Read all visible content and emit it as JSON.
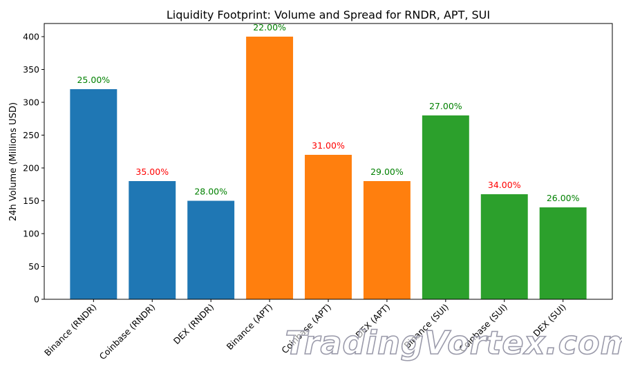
{
  "chart_data": {
    "type": "bar",
    "title": "Liquidity Footprint: Volume and Spread for RNDR, APT, SUI",
    "xlabel": "",
    "ylabel": "24h Volume (Millions USD)",
    "ylim": [
      0,
      420
    ],
    "yticks": [
      0,
      50,
      100,
      150,
      200,
      250,
      300,
      350,
      400
    ],
    "grid": false,
    "categories": [
      "Binance (RNDR)",
      "Coinbase (RNDR)",
      "DEX (RNDR)",
      "Binance (APT)",
      "Coinbase (APT)",
      "DEX (APT)",
      "Binance (SUI)",
      "Coinbase (SUI)",
      "DEX (SUI)"
    ],
    "values": [
      320,
      180,
      150,
      400,
      220,
      180,
      280,
      160,
      140
    ],
    "bar_colors": [
      "#1f77b4",
      "#1f77b4",
      "#1f77b4",
      "#ff7f0e",
      "#ff7f0e",
      "#ff7f0e",
      "#2ca02c",
      "#2ca02c",
      "#2ca02c"
    ],
    "data_labels": [
      "25.00%",
      "35.00%",
      "28.00%",
      "22.00%",
      "31.00%",
      "29.00%",
      "27.00%",
      "34.00%",
      "26.00%"
    ],
    "data_label_colors": [
      "#008000",
      "#ff0000",
      "#008000",
      "#008000",
      "#ff0000",
      "#008000",
      "#008000",
      "#ff0000",
      "#008000"
    ]
  },
  "watermark": "TradingVortex.com"
}
